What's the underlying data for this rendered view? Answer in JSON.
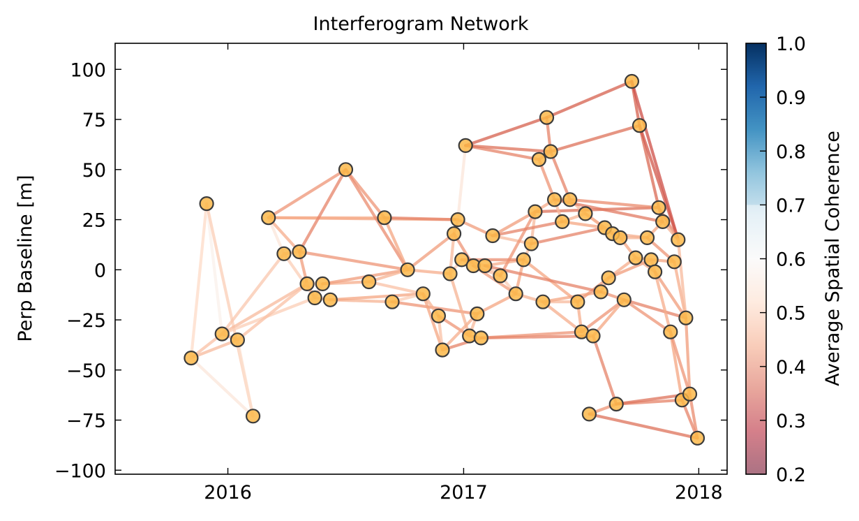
{
  "chart_data": {
    "type": "scatter",
    "title": "Interferogram Network",
    "xlabel": "",
    "ylabel": "Perp Baseline [m]",
    "xlim": [
      "2015-07-10",
      "2018-02-14"
    ],
    "ylim": [
      -102,
      113
    ],
    "x_ticks": [
      {
        "date": "2016-01-01",
        "label": "2016"
      },
      {
        "date": "2017-01-01",
        "label": "2017"
      },
      {
        "date": "2018-01-01",
        "label": "2018"
      }
    ],
    "y_ticks": [
      -100,
      -75,
      -50,
      -25,
      0,
      25,
      50,
      75,
      100
    ],
    "grid": false,
    "marker_color": "#fcb94a",
    "marker_edge_color": "#3b3b3b",
    "colorbar": {
      "label": "Average Spatial Coherence",
      "range": [
        0.2,
        1.0
      ],
      "ticks": [
        0.2,
        0.3,
        0.4,
        0.5,
        0.6,
        0.7,
        0.8,
        0.9,
        1.0
      ],
      "colormap": "RdBu",
      "colormap_stops": [
        "#67001f",
        "#b2182b",
        "#d6604d",
        "#f4a582",
        "#fddbc7",
        "#f7f7f7",
        "#d1e5f0",
        "#92c5de",
        "#4393c3",
        "#2166ac",
        "#053061"
      ],
      "valid_from": 0.7,
      "invalid_color": "#ffffff"
    },
    "acquisitions": [
      {
        "date": "2015-11-05",
        "bperp": -44
      },
      {
        "date": "2015-11-29",
        "bperp": 33
      },
      {
        "date": "2015-12-23",
        "bperp": -32
      },
      {
        "date": "2016-01-16",
        "bperp": -35
      },
      {
        "date": "2016-02-09",
        "bperp": -73
      },
      {
        "date": "2016-03-04",
        "bperp": 26
      },
      {
        "date": "2016-03-28",
        "bperp": 8
      },
      {
        "date": "2016-04-21",
        "bperp": 9
      },
      {
        "date": "2016-05-03",
        "bperp": -7
      },
      {
        "date": "2016-05-15",
        "bperp": -14
      },
      {
        "date": "2016-05-27",
        "bperp": -7
      },
      {
        "date": "2016-06-08",
        "bperp": -15
      },
      {
        "date": "2016-07-02",
        "bperp": 50
      },
      {
        "date": "2016-08-07",
        "bperp": -6
      },
      {
        "date": "2016-08-31",
        "bperp": 26
      },
      {
        "date": "2016-09-12",
        "bperp": -16
      },
      {
        "date": "2016-10-06",
        "bperp": 0
      },
      {
        "date": "2016-10-30",
        "bperp": -12
      },
      {
        "date": "2016-11-23",
        "bperp": -23
      },
      {
        "date": "2016-11-29",
        "bperp": -40
      },
      {
        "date": "2016-12-11",
        "bperp": -2
      },
      {
        "date": "2016-12-17",
        "bperp": 18
      },
      {
        "date": "2016-12-23",
        "bperp": 25
      },
      {
        "date": "2016-12-29",
        "bperp": 5
      },
      {
        "date": "2017-01-04",
        "bperp": 62
      },
      {
        "date": "2017-01-10",
        "bperp": -33
      },
      {
        "date": "2017-01-16",
        "bperp": 2
      },
      {
        "date": "2017-01-22",
        "bperp": -22
      },
      {
        "date": "2017-01-28",
        "bperp": -34
      },
      {
        "date": "2017-02-03",
        "bperp": 2
      },
      {
        "date": "2017-02-15",
        "bperp": 17
      },
      {
        "date": "2017-02-27",
        "bperp": -3
      },
      {
        "date": "2017-03-23",
        "bperp": -12
      },
      {
        "date": "2017-04-04",
        "bperp": 5
      },
      {
        "date": "2017-04-16",
        "bperp": 13
      },
      {
        "date": "2017-04-22",
        "bperp": 29
      },
      {
        "date": "2017-04-28",
        "bperp": 55
      },
      {
        "date": "2017-05-04",
        "bperp": -16
      },
      {
        "date": "2017-05-10",
        "bperp": 76
      },
      {
        "date": "2017-05-16",
        "bperp": 59
      },
      {
        "date": "2017-05-22",
        "bperp": 35
      },
      {
        "date": "2017-06-03",
        "bperp": 24
      },
      {
        "date": "2017-06-15",
        "bperp": 35
      },
      {
        "date": "2017-06-27",
        "bperp": -16
      },
      {
        "date": "2017-07-03",
        "bperp": -31
      },
      {
        "date": "2017-07-09",
        "bperp": 28
      },
      {
        "date": "2017-07-15",
        "bperp": -72
      },
      {
        "date": "2017-07-21",
        "bperp": -33
      },
      {
        "date": "2017-08-02",
        "bperp": -11
      },
      {
        "date": "2017-08-08",
        "bperp": 21
      },
      {
        "date": "2017-08-14",
        "bperp": -4
      },
      {
        "date": "2017-08-20",
        "bperp": 18
      },
      {
        "date": "2017-08-26",
        "bperp": -67
      },
      {
        "date": "2017-09-01",
        "bperp": 16
      },
      {
        "date": "2017-09-07",
        "bperp": -15
      },
      {
        "date": "2017-09-19",
        "bperp": 94
      },
      {
        "date": "2017-09-25",
        "bperp": 6
      },
      {
        "date": "2017-10-01",
        "bperp": 72
      },
      {
        "date": "2017-10-13",
        "bperp": 16
      },
      {
        "date": "2017-10-19",
        "bperp": 5
      },
      {
        "date": "2017-10-25",
        "bperp": -1
      },
      {
        "date": "2017-10-31",
        "bperp": 31
      },
      {
        "date": "2017-11-06",
        "bperp": 24
      },
      {
        "date": "2017-11-18",
        "bperp": -31
      },
      {
        "date": "2017-11-24",
        "bperp": 4
      },
      {
        "date": "2017-11-30",
        "bperp": 15
      },
      {
        "date": "2017-12-06",
        "bperp": -65
      },
      {
        "date": "2017-12-12",
        "bperp": -24
      },
      {
        "date": "2017-12-18",
        "bperp": -62
      },
      {
        "date": "2017-12-30",
        "bperp": -84
      }
    ],
    "pairs": [
      [
        0,
        1,
        0.52
      ],
      [
        0,
        2,
        0.48
      ],
      [
        0,
        3,
        0.47
      ],
      [
        0,
        4,
        0.55
      ],
      [
        1,
        2,
        0.58
      ],
      [
        1,
        4,
        0.5
      ],
      [
        2,
        3,
        0.46
      ],
      [
        2,
        6,
        0.49
      ],
      [
        2,
        8,
        0.47
      ],
      [
        2,
        9,
        0.5
      ],
      [
        3,
        4,
        0.53
      ],
      [
        3,
        8,
        0.48
      ],
      [
        5,
        7,
        0.45
      ],
      [
        5,
        12,
        0.42
      ],
      [
        5,
        14,
        0.47
      ],
      [
        5,
        6,
        0.55
      ],
      [
        5,
        22,
        0.44
      ],
      [
        6,
        7,
        0.48
      ],
      [
        6,
        9,
        0.5
      ],
      [
        7,
        8,
        0.43
      ],
      [
        7,
        12,
        0.4
      ],
      [
        7,
        16,
        0.42
      ],
      [
        8,
        9,
        0.47
      ],
      [
        8,
        10,
        0.52
      ],
      [
        9,
        10,
        0.5
      ],
      [
        9,
        11,
        0.48
      ],
      [
        10,
        13,
        0.45
      ],
      [
        10,
        16,
        0.43
      ],
      [
        11,
        15,
        0.46
      ],
      [
        11,
        17,
        0.44
      ],
      [
        12,
        14,
        0.42
      ],
      [
        12,
        16,
        0.41
      ],
      [
        13,
        17,
        0.48
      ],
      [
        13,
        16,
        0.46
      ],
      [
        14,
        16,
        0.44
      ],
      [
        14,
        22,
        0.4
      ],
      [
        15,
        17,
        0.5
      ],
      [
        15,
        27,
        0.42
      ],
      [
        16,
        20,
        0.45
      ],
      [
        16,
        21,
        0.43
      ],
      [
        17,
        18,
        0.46
      ],
      [
        17,
        19,
        0.44
      ],
      [
        18,
        19,
        0.48
      ],
      [
        18,
        25,
        0.42
      ],
      [
        19,
        28,
        0.4
      ],
      [
        19,
        27,
        0.45
      ],
      [
        20,
        21,
        0.47
      ],
      [
        20,
        23,
        0.5
      ],
      [
        21,
        22,
        0.48
      ],
      [
        21,
        26,
        0.42
      ],
      [
        22,
        24,
        0.55
      ],
      [
        22,
        30,
        0.43
      ],
      [
        23,
        26,
        0.52
      ],
      [
        23,
        29,
        0.46
      ],
      [
        24,
        36,
        0.4
      ],
      [
        24,
        39,
        0.38
      ],
      [
        24,
        38,
        0.36
      ],
      [
        25,
        27,
        0.47
      ],
      [
        25,
        28,
        0.45
      ],
      [
        26,
        29,
        0.5
      ],
      [
        26,
        31,
        0.48
      ],
      [
        27,
        32,
        0.44
      ],
      [
        28,
        44,
        0.42
      ],
      [
        28,
        47,
        0.4
      ],
      [
        29,
        31,
        0.49
      ],
      [
        29,
        33,
        0.45
      ],
      [
        30,
        34,
        0.47
      ],
      [
        30,
        35,
        0.43
      ],
      [
        31,
        32,
        0.5
      ],
      [
        32,
        37,
        0.46
      ],
      [
        32,
        33,
        0.44
      ],
      [
        33,
        34,
        0.48
      ],
      [
        34,
        35,
        0.47
      ],
      [
        34,
        49,
        0.4
      ],
      [
        35,
        40,
        0.45
      ],
      [
        35,
        61,
        0.38
      ],
      [
        36,
        39,
        0.43
      ],
      [
        36,
        40,
        0.42
      ],
      [
        37,
        43,
        0.47
      ],
      [
        37,
        48,
        0.44
      ],
      [
        38,
        39,
        0.4
      ],
      [
        38,
        55,
        0.36
      ],
      [
        39,
        57,
        0.38
      ],
      [
        39,
        42,
        0.4
      ],
      [
        40,
        41,
        0.47
      ],
      [
        40,
        42,
        0.45
      ],
      [
        41,
        45,
        0.46
      ],
      [
        41,
        49,
        0.44
      ],
      [
        42,
        45,
        0.47
      ],
      [
        42,
        61,
        0.41
      ],
      [
        43,
        44,
        0.45
      ],
      [
        43,
        50,
        0.43
      ],
      [
        44,
        47,
        0.5
      ],
      [
        44,
        54,
        0.42
      ],
      [
        45,
        49,
        0.46
      ],
      [
        45,
        51,
        0.45
      ],
      [
        46,
        52,
        0.42
      ],
      [
        46,
        69,
        0.38
      ],
      [
        47,
        52,
        0.4
      ],
      [
        47,
        54,
        0.44
      ],
      [
        48,
        50,
        0.46
      ],
      [
        48,
        54,
        0.42
      ],
      [
        49,
        51,
        0.48
      ],
      [
        49,
        53,
        0.46
      ],
      [
        50,
        56,
        0.45
      ],
      [
        50,
        59,
        0.43
      ],
      [
        51,
        53,
        0.47
      ],
      [
        51,
        58,
        0.45
      ],
      [
        52,
        66,
        0.4
      ],
      [
        52,
        68,
        0.38
      ],
      [
        53,
        56,
        0.44
      ],
      [
        53,
        58,
        0.46
      ],
      [
        54,
        63,
        0.42
      ],
      [
        54,
        67,
        0.4
      ],
      [
        55,
        57,
        0.36
      ],
      [
        55,
        65,
        0.34
      ],
      [
        56,
        59,
        0.47
      ],
      [
        56,
        60,
        0.45
      ],
      [
        57,
        61,
        0.37
      ],
      [
        57,
        65,
        0.35
      ],
      [
        58,
        62,
        0.44
      ],
      [
        58,
        64,
        0.42
      ],
      [
        59,
        60,
        0.48
      ],
      [
        59,
        64,
        0.44
      ],
      [
        60,
        63,
        0.45
      ],
      [
        60,
        67,
        0.43
      ],
      [
        61,
        62,
        0.42
      ],
      [
        61,
        65,
        0.4
      ],
      [
        62,
        65,
        0.46
      ],
      [
        63,
        66,
        0.44
      ],
      [
        63,
        68,
        0.42
      ],
      [
        64,
        67,
        0.45
      ],
      [
        65,
        67,
        0.47
      ],
      [
        66,
        68,
        0.46
      ],
      [
        66,
        69,
        0.4
      ],
      [
        67,
        68,
        0.43
      ],
      [
        68,
        69,
        0.41
      ],
      [
        33,
        43,
        0.44
      ],
      [
        26,
        32,
        0.43
      ],
      [
        31,
        35,
        0.42
      ],
      [
        30,
        41,
        0.4
      ],
      [
        20,
        25,
        0.46
      ],
      [
        23,
        33,
        0.41
      ],
      [
        40,
        62,
        0.39
      ],
      [
        29,
        48,
        0.4
      ],
      [
        37,
        44,
        0.45
      ]
    ]
  }
}
